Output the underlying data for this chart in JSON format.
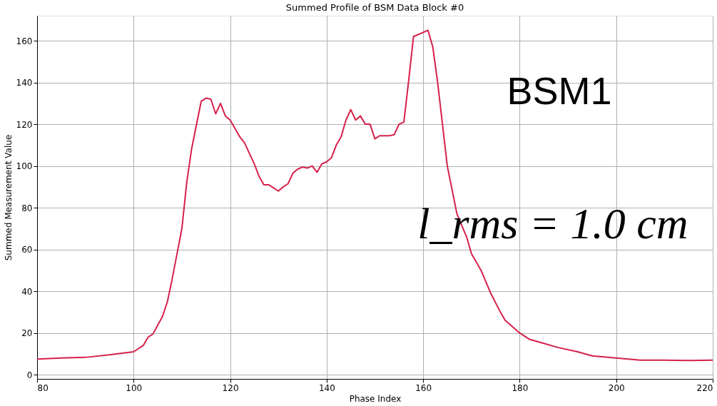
{
  "chart_data": {
    "type": "line",
    "title": "Summed Profile of BSM Data Block #0",
    "xlabel": "Phase Index",
    "ylabel": "Summed Measurement Value",
    "x": [
      80,
      85,
      90,
      95,
      100,
      102,
      103,
      104,
      106,
      107,
      108,
      110,
      111,
      112,
      114,
      115,
      116,
      117,
      118,
      119,
      120,
      121,
      122,
      123,
      124,
      125,
      126,
      127,
      128,
      129,
      130,
      131,
      132,
      133,
      134,
      135,
      136,
      137,
      138,
      139,
      140,
      141,
      142,
      143,
      144,
      145,
      146,
      147,
      148,
      149,
      150,
      151,
      152,
      153,
      154,
      155,
      156,
      157,
      158,
      160,
      161,
      162,
      163,
      164,
      165,
      167,
      169,
      170,
      172,
      174,
      176,
      177,
      180,
      182,
      185,
      188,
      192,
      195,
      200,
      205,
      210,
      215,
      220
    ],
    "series": [
      {
        "color": "#d6204a",
        "values": [
          7.5,
          8,
          8.3,
          9.5,
          11,
          14,
          18,
          19.5,
          28,
          35,
          46,
          70,
          92,
          108,
          131,
          132.5,
          132,
          125,
          130,
          124,
          122,
          118,
          114,
          111,
          106,
          101,
          95,
          91,
          91,
          89.5,
          88,
          90,
          91.5,
          96.5,
          98.5,
          99.5,
          99,
          100,
          97,
          101,
          102,
          104,
          110,
          114,
          122,
          127,
          122,
          124,
          120,
          120,
          113,
          114.5,
          114.5,
          114.5,
          115,
          120,
          121,
          141,
          162,
          164,
          165,
          157,
          140,
          120,
          100,
          77,
          66,
          58,
          50,
          39,
          30,
          26,
          20,
          17,
          15,
          13,
          11,
          9,
          8,
          7,
          7,
          6.8,
          7
        ]
      }
    ],
    "xlim": [
      80,
      220
    ],
    "ylim": [
      -2,
      172
    ],
    "xticks": [
      80,
      100,
      120,
      140,
      160,
      180,
      200,
      220
    ],
    "yticks": [
      0,
      20,
      40,
      60,
      80,
      100,
      120,
      140,
      160
    ],
    "grid": true,
    "line_style": "solid",
    "marker": "none",
    "annotations": [
      "BSM1",
      "l_rms = 1.0 cm"
    ]
  }
}
